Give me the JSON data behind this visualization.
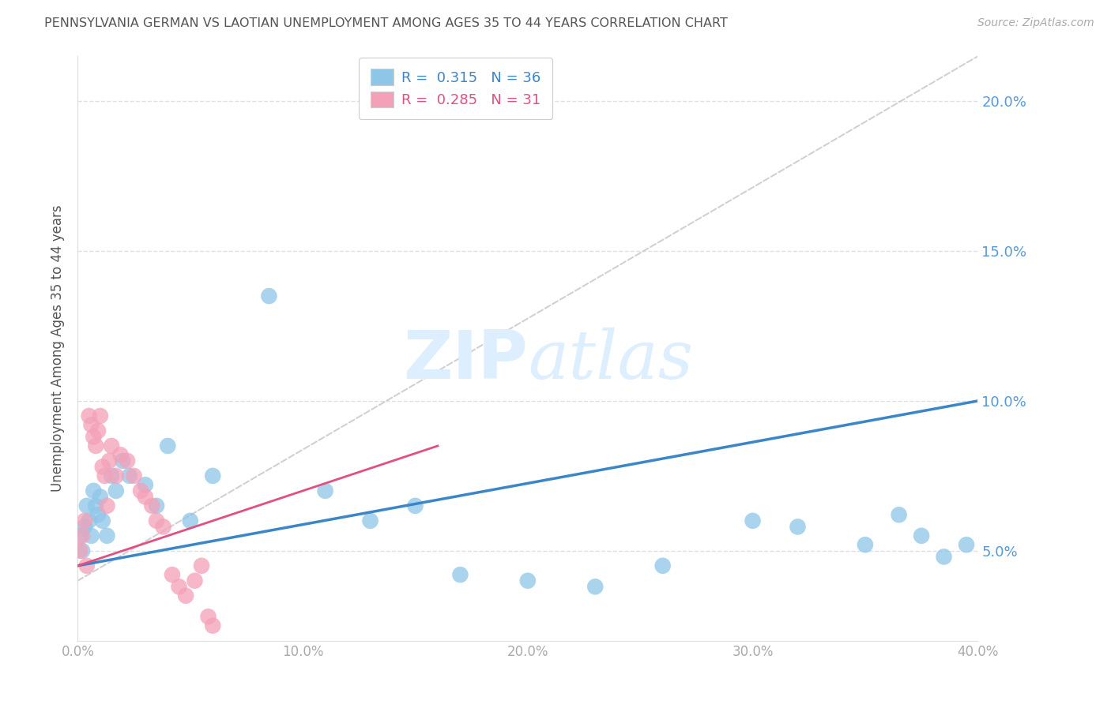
{
  "title": "PENNSYLVANIA GERMAN VS LAOTIAN UNEMPLOYMENT AMONG AGES 35 TO 44 YEARS CORRELATION CHART",
  "source": "Source: ZipAtlas.com",
  "ylabel": "Unemployment Among Ages 35 to 44 years",
  "xlim": [
    0.0,
    0.4
  ],
  "ylim": [
    0.02,
    0.215
  ],
  "pa_german_R": 0.315,
  "pa_german_N": 36,
  "laotian_R": 0.285,
  "laotian_N": 31,
  "pa_german_color": "#8ec6e8",
  "laotian_color": "#f4a0b8",
  "pa_german_line_color": "#3a86c8",
  "laotian_line_color": "#e05080",
  "diagonal_color": "#cccccc",
  "pa_german_x": [
    0.001,
    0.002,
    0.003,
    0.004,
    0.005,
    0.006,
    0.007,
    0.008,
    0.009,
    0.01,
    0.011,
    0.013,
    0.015,
    0.017,
    0.02,
    0.023,
    0.03,
    0.035,
    0.04,
    0.05,
    0.06,
    0.085,
    0.11,
    0.13,
    0.15,
    0.17,
    0.2,
    0.23,
    0.26,
    0.3,
    0.32,
    0.35,
    0.365,
    0.375,
    0.385,
    0.395
  ],
  "pa_german_y": [
    0.055,
    0.05,
    0.058,
    0.065,
    0.06,
    0.055,
    0.07,
    0.065,
    0.062,
    0.068,
    0.06,
    0.055,
    0.075,
    0.07,
    0.08,
    0.075,
    0.072,
    0.065,
    0.085,
    0.06,
    0.075,
    0.135,
    0.07,
    0.06,
    0.065,
    0.042,
    0.04,
    0.038,
    0.045,
    0.06,
    0.058,
    0.052,
    0.062,
    0.055,
    0.048,
    0.052
  ],
  "laotian_x": [
    0.001,
    0.002,
    0.003,
    0.004,
    0.005,
    0.006,
    0.007,
    0.008,
    0.009,
    0.01,
    0.011,
    0.012,
    0.013,
    0.014,
    0.015,
    0.017,
    0.019,
    0.022,
    0.025,
    0.028,
    0.03,
    0.033,
    0.035,
    0.038,
    0.042,
    0.045,
    0.048,
    0.052,
    0.055,
    0.058,
    0.06
  ],
  "laotian_y": [
    0.05,
    0.055,
    0.06,
    0.045,
    0.095,
    0.092,
    0.088,
    0.085,
    0.09,
    0.095,
    0.078,
    0.075,
    0.065,
    0.08,
    0.085,
    0.075,
    0.082,
    0.08,
    0.075,
    0.07,
    0.068,
    0.065,
    0.06,
    0.058,
    0.042,
    0.038,
    0.035,
    0.04,
    0.045,
    0.028,
    0.025
  ],
  "background_color": "#ffffff",
  "grid_color": "#e0e0e0",
  "title_color": "#555555",
  "axis_tick_color": "#aaaaaa",
  "right_axis_color": "#5599dd",
  "watermark_color": "#ddeeff",
  "legend_edge_color": "#cccccc"
}
